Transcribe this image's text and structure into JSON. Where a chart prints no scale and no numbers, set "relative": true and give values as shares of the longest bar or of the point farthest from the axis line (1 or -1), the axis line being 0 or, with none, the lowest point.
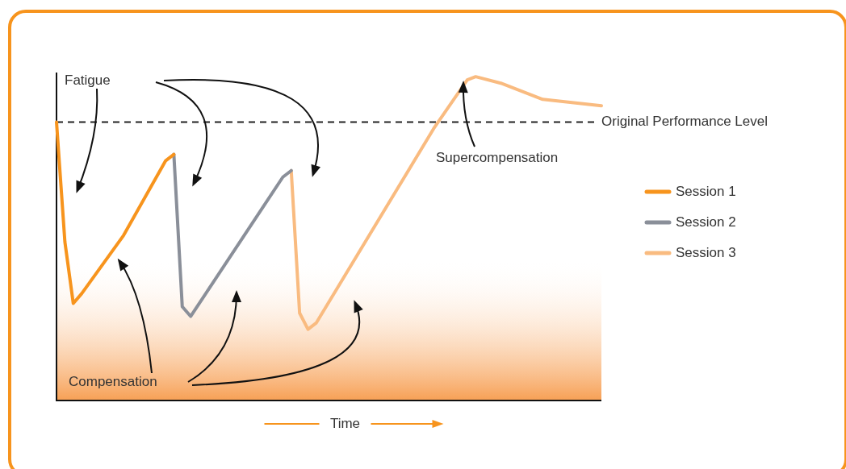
{
  "chart_data": {
    "type": "line",
    "relative": true,
    "xlabel": "Time",
    "categories": [
      null,
      null,
      null,
      null,
      null,
      null,
      null,
      null,
      null,
      null,
      null,
      null,
      null,
      null,
      null,
      null,
      null,
      null,
      null,
      null,
      null,
      null,
      null,
      null,
      null,
      null,
      null,
      null,
      null,
      null,
      null,
      null,
      null,
      null,
      null,
      null,
      null,
      null,
      null,
      null,
      null,
      null,
      null,
      null,
      null,
      null,
      null,
      null,
      null,
      null,
      null,
      null,
      null,
      null,
      null,
      null,
      null,
      null,
      null,
      null,
      null,
      null,
      null,
      null,
      null,
      null
    ],
    "series": [
      {
        "name": "Session 1",
        "color": "#f7941d",
        "values": [
          0.86,
          0.49,
          0.3,
          0.33,
          null,
          null,
          null,
          null,
          0.51,
          null,
          null,
          null,
          null,
          0.74,
          0.76,
          null,
          null,
          null,
          null,
          null,
          null,
          null,
          null,
          null,
          null,
          null,
          null,
          null,
          null,
          null,
          null,
          null,
          null,
          null,
          null,
          null,
          null,
          null,
          null,
          null,
          null,
          null,
          null,
          null,
          null,
          null,
          null,
          null,
          null,
          null,
          null,
          null,
          null,
          null,
          null,
          null,
          null,
          null,
          null,
          null,
          null,
          null,
          null,
          null,
          null,
          null
        ]
      },
      {
        "name": "Session 2",
        "color": "#8a8f99",
        "values": [
          null,
          null,
          null,
          null,
          null,
          null,
          null,
          null,
          null,
          null,
          null,
          null,
          null,
          null,
          0.76,
          0.29,
          0.26,
          null,
          null,
          null,
          null,
          null,
          null,
          null,
          null,
          null,
          null,
          0.69,
          0.71,
          null,
          null,
          null,
          null,
          null,
          null,
          null,
          null,
          null,
          null,
          null,
          null,
          null,
          null,
          null,
          null,
          null,
          null,
          null,
          null,
          null,
          null,
          null,
          null,
          null,
          null,
          null,
          null,
          null,
          null,
          null,
          null,
          null,
          null,
          null,
          null,
          null
        ]
      },
      {
        "name": "Session 3",
        "color": "#f9bb80",
        "values": [
          null,
          null,
          null,
          null,
          null,
          null,
          null,
          null,
          null,
          null,
          null,
          null,
          null,
          null,
          null,
          null,
          null,
          null,
          null,
          null,
          null,
          null,
          null,
          null,
          null,
          null,
          null,
          null,
          0.71,
          0.27,
          0.22,
          0.24,
          null,
          null,
          null,
          null,
          null,
          null,
          null,
          null,
          null,
          null,
          null,
          null,
          null,
          0.84,
          null,
          null,
          null,
          0.99,
          1,
          null,
          null,
          0.98,
          null,
          null,
          null,
          null,
          0.93,
          null,
          null,
          null,
          null,
          null,
          null,
          0.91
        ]
      }
    ],
    "ref_lines": [
      {
        "axis": "y",
        "value": 0.86,
        "label": "Original Performance Level",
        "color": "#222222",
        "line_style": "dashed"
      }
    ],
    "bands": [
      {
        "axis": "y",
        "from": 0,
        "to": 0.44,
        "color": "#f7a055"
      }
    ],
    "annotations": [
      "Fatigue",
      "Compensation",
      "Supercompensation"
    ],
    "legend": "right",
    "marker": "none",
    "line_style": "solid"
  }
}
